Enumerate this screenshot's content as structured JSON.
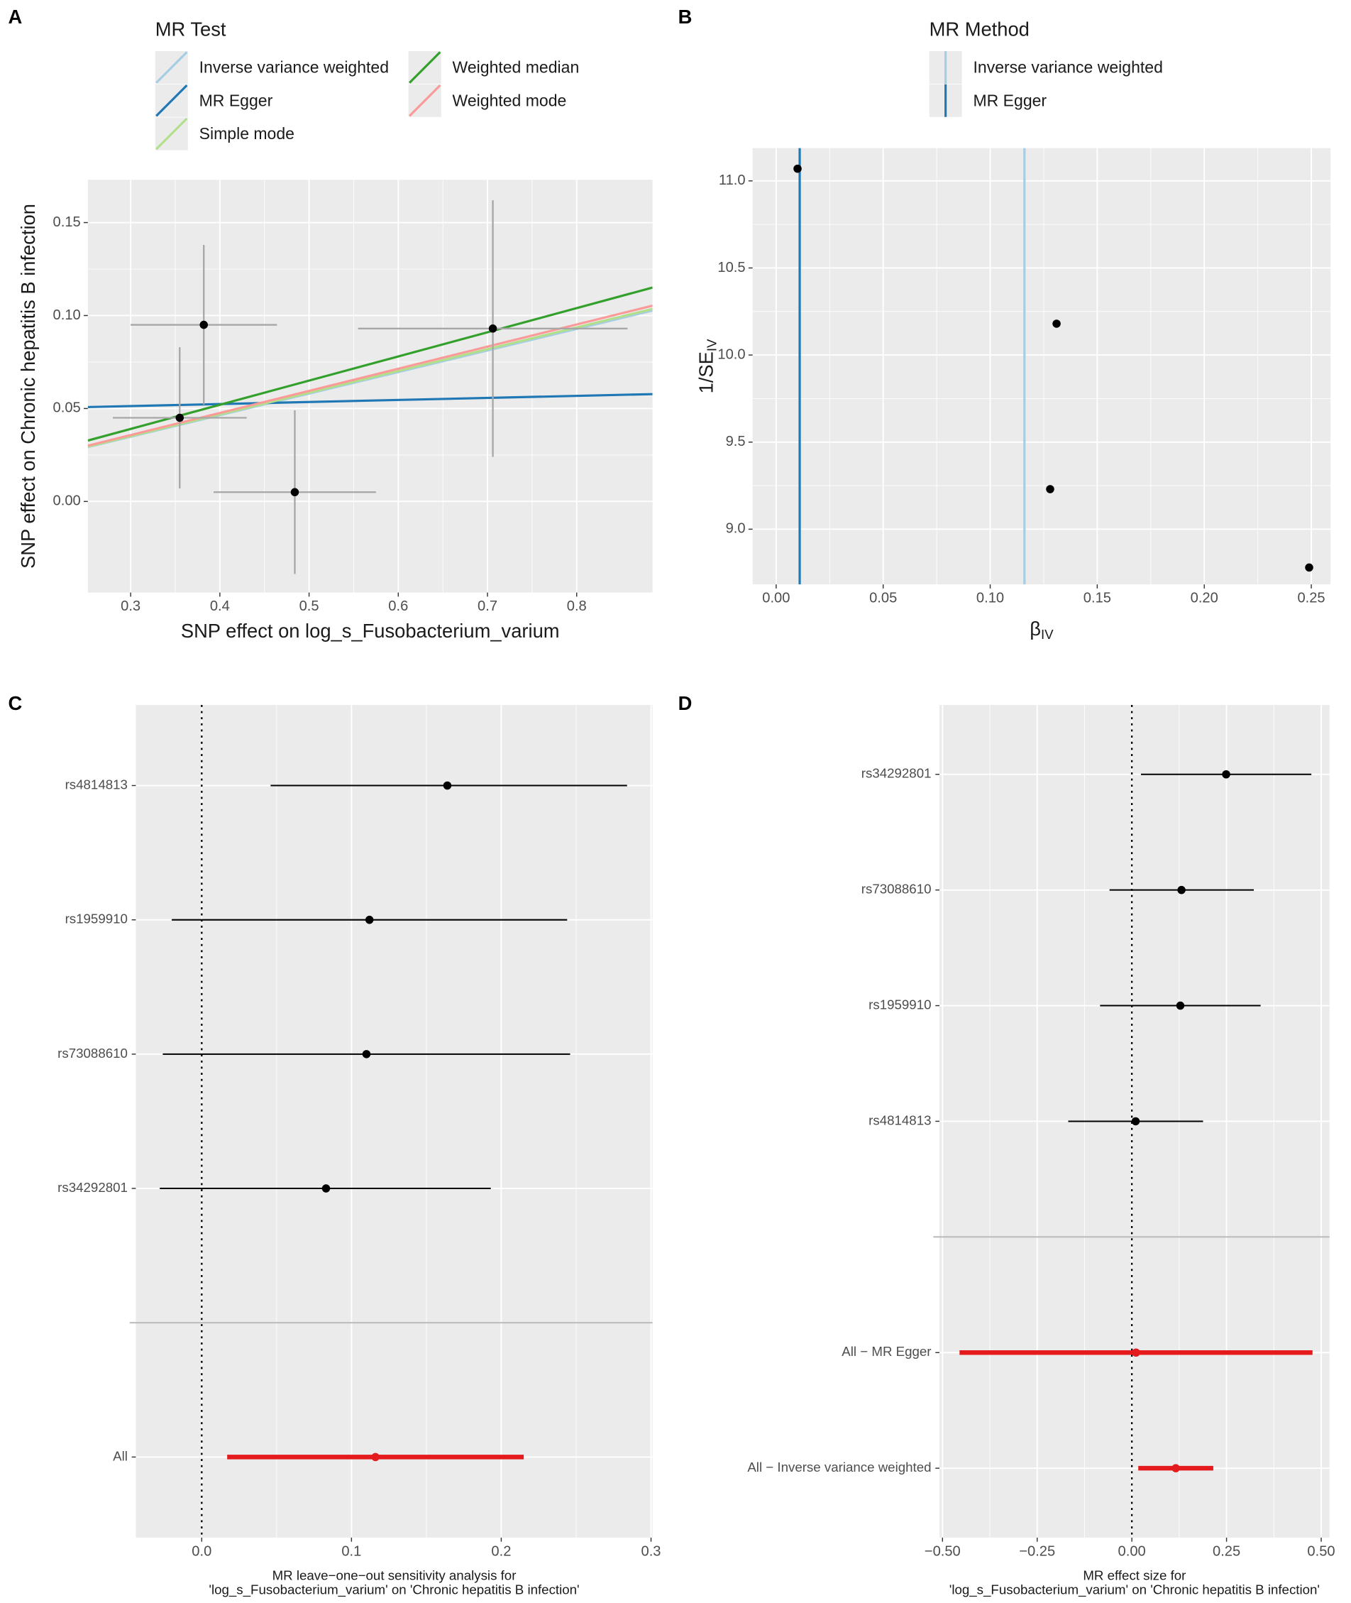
{
  "chart_data": [
    {
      "type": "scatter",
      "panel": "A",
      "legend_title": "MR Test",
      "xlabel": "SNP effect on log_s_Fusobacterium_varium",
      "ylabel": "SNP effect on Chronic hepatitis B infection",
      "x": [
        0.382,
        0.355,
        0.484,
        0.706
      ],
      "y": [
        0.095,
        0.045,
        0.005,
        0.093
      ],
      "x_err": [
        0.082,
        0.075,
        0.091,
        0.151
      ],
      "y_err": [
        0.043,
        0.038,
        0.044,
        0.069
      ],
      "point_color": "#000000",
      "error_color": "#a6a6a6",
      "series": [
        {
          "name": "Inverse variance weighted",
          "color": "#a6cee3",
          "slope": 0.116,
          "intercept": 0
        },
        {
          "name": "MR Egger",
          "color": "#1f78b4",
          "slope": 0.011,
          "intercept": 0.048
        },
        {
          "name": "Simple mode",
          "color": "#b2df8a",
          "slope": 0.117,
          "intercept": 0
        },
        {
          "name": "Weighted median",
          "color": "#33a02c",
          "slope": 0.13,
          "intercept": 0
        },
        {
          "name": "Weighted mode",
          "color": "#fb9a99",
          "slope": 0.119,
          "intercept": 0
        }
      ],
      "xlim": [
        0.252,
        0.885
      ],
      "xticks": [
        0.3,
        0.4,
        0.5,
        0.6,
        0.7,
        0.8
      ],
      "ylim": [
        -0.049,
        0.173
      ],
      "yticks": [
        {
          "value": 0,
          "label": "0.00"
        },
        0.05,
        {
          "value": 0.1,
          "label": "0.10"
        },
        0.15
      ],
      "grid": true
    },
    {
      "type": "funnel",
      "panel": "B",
      "legend_title": "MR Method",
      "xlabel": "β",
      "xlabel_sub": "IV",
      "ylabel": "1/SE",
      "ylabel_sub": "IV",
      "x": [
        0.01,
        0.131,
        0.128,
        0.249
      ],
      "y": [
        11.07,
        10.18,
        9.23,
        8.78
      ],
      "point_color": "#000000",
      "series": [
        {
          "name": "Inverse variance weighted",
          "color": "#a6cee3",
          "value": 0.116
        },
        {
          "name": "MR Egger",
          "color": "#1f78b4",
          "value": 0.011
        }
      ],
      "xlim": [
        -0.011,
        0.259
      ],
      "xticks": [
        {
          "value": 0,
          "label": "0.00"
        },
        0.05,
        {
          "value": 0.1,
          "label": "0.10"
        },
        0.15,
        {
          "value": 0.2,
          "label": "0.20"
        },
        0.25
      ],
      "ylim": [
        8.683,
        11.188
      ],
      "yticks": [
        {
          "value": 9,
          "label": "9.0"
        },
        9.5,
        {
          "value": 10,
          "label": "10.0"
        },
        10.5,
        {
          "value": 11,
          "label": "11.0"
        }
      ],
      "grid": true
    },
    {
      "type": "forest",
      "panel": "C",
      "xlabel": [
        "MR leave−one−out sensitivity analysis for",
        "'log_s_Fusobacterium_varium' on 'Chronic hepatitis B infection'"
      ],
      "categories": [
        "rs4814813",
        "rs1959910",
        "rs73088610",
        "rs34292801",
        null,
        "All"
      ],
      "values": [
        0.164,
        0.112,
        0.11,
        0.083,
        null,
        0.116
      ],
      "ci_lower": [
        0.046,
        -0.02,
        -0.026,
        -0.028,
        null,
        0.017
      ],
      "ci_upper": [
        0.284,
        0.244,
        0.246,
        0.193,
        null,
        0.215
      ],
      "colors": [
        "#000000",
        "#000000",
        "#000000",
        "#000000",
        null,
        "#e41a1c"
      ],
      "summary_color": "#e41a1c",
      "refline": 0,
      "xlim": [
        -0.044,
        0.301
      ],
      "xticks": [
        {
          "value": 0,
          "label": "0.0"
        },
        0.1,
        0.2,
        0.3
      ],
      "grid": true
    },
    {
      "type": "forest",
      "panel": "D",
      "xlabel": [
        "MR effect size for",
        "'log_s_Fusobacterium_varium' on 'Chronic hepatitis B infection'"
      ],
      "categories": [
        "rs34292801",
        "rs73088610",
        "rs1959910",
        "rs4814813",
        null,
        "All − MR Egger",
        "All − Inverse variance weighted"
      ],
      "values": [
        0.249,
        0.131,
        0.128,
        0.01,
        null,
        0.011,
        0.116
      ],
      "ci_lower": [
        0.024,
        -0.059,
        -0.084,
        -0.168,
        null,
        -0.455,
        0.017
      ],
      "ci_upper": [
        0.474,
        0.322,
        0.34,
        0.188,
        null,
        0.477,
        0.215
      ],
      "colors": [
        "#000000",
        "#000000",
        "#000000",
        "#000000",
        null,
        "#e41a1c",
        "#e41a1c"
      ],
      "summary_color": "#e41a1c",
      "refline": 0,
      "xlim": [
        -0.508,
        0.522
      ],
      "xticks": [
        {
          "value": -0.5,
          "label": "−0.50"
        },
        {
          "value": -0.25,
          "label": "−0.25"
        },
        {
          "value": 0,
          "label": "0.00"
        },
        0.25,
        {
          "value": 0.5,
          "label": "0.50"
        }
      ],
      "grid": true
    }
  ]
}
